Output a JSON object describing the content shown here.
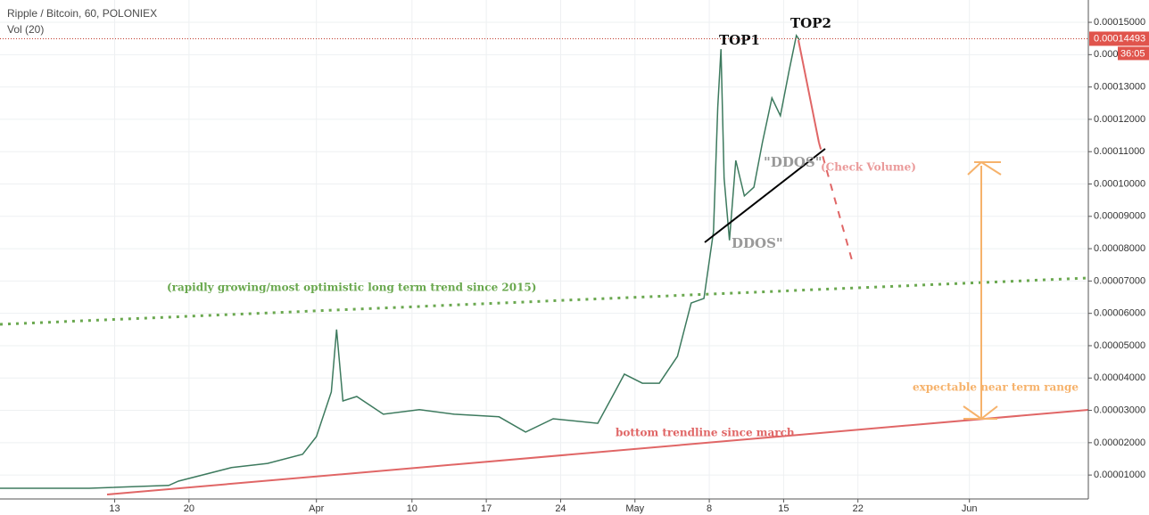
{
  "chart_data": {
    "type": "line",
    "title": "Ripple / Bitcoin, 60, POLONIEX",
    "indicator": "Vol (20)",
    "color": "#3d7a5e",
    "grid": true,
    "x": [
      -10.8,
      -2.4,
      5.1,
      6,
      11,
      14.4,
      17.7,
      19,
      20.4,
      20.9,
      21.5,
      22.8,
      25.3,
      28.7,
      32,
      36.2,
      38.7,
      41.3,
      45.5,
      47.1,
      48,
      49.7,
      51.3,
      53,
      54.3,
      55.5,
      56.4,
      56.8,
      57.1,
      57.4,
      57.9,
      58.5,
      59.3,
      60.2,
      61,
      61.9,
      62.7,
      63.5,
      64.2,
      64.5
    ],
    "values": [
      5.9e-06,
      5.9e-06,
      6.8e-06,
      8.1e-06,
      1.23e-05,
      1.36e-05,
      1.64e-05,
      2.19e-05,
      3.57e-05,
      5.5e-05,
      3.29e-05,
      3.43e-05,
      2.88e-05,
      3.02e-05,
      2.88e-05,
      2.8e-05,
      2.33e-05,
      2.74e-05,
      2.6e-05,
      3.57e-05,
      4.12e-05,
      3.84e-05,
      3.84e-05,
      4.67e-05,
      6.32e-05,
      6.46e-05,
      8.53e-05,
      0.0001238,
      0.0001417,
      0.0001018,
      8.26e-05,
      0.0001073,
      9.63e-05,
      9.9e-05,
      0.0001128,
      0.0001266,
      0.0001211,
      0.0001348,
      0.0001459,
      0.0001445
    ],
    "xlim": [
      -10.8,
      91.7
    ],
    "xticks": [
      {
        "value": 0,
        "label": "13"
      },
      {
        "value": 7,
        "label": "20"
      },
      {
        "value": 19,
        "label": "Apr"
      },
      {
        "value": 28,
        "label": "10"
      },
      {
        "value": 35,
        "label": "17"
      },
      {
        "value": 42,
        "label": "24"
      },
      {
        "value": 49,
        "label": "May"
      },
      {
        "value": 56,
        "label": "8"
      },
      {
        "value": 63,
        "label": "15"
      },
      {
        "value": 70,
        "label": "22"
      },
      {
        "value": 80.5,
        "label": "Jun"
      }
    ],
    "ylim": [
      2.6e-06,
      0.0001569
    ],
    "yticks": [
      {
        "value": 1e-05,
        "label": "0.00001000"
      },
      {
        "value": 2e-05,
        "label": "0.00002000"
      },
      {
        "value": 3e-05,
        "label": "0.00003000"
      },
      {
        "value": 4e-05,
        "label": "0.00004000"
      },
      {
        "value": 5e-05,
        "label": "0.00005000"
      },
      {
        "value": 6e-05,
        "label": "0.00006000"
      },
      {
        "value": 7e-05,
        "label": "0.00007000"
      },
      {
        "value": 8e-05,
        "label": "0.00008000"
      },
      {
        "value": 9e-05,
        "label": "0.00009000"
      },
      {
        "value": 0.0001,
        "label": "0.00010000"
      },
      {
        "value": 0.00011,
        "label": "0.00011000"
      },
      {
        "value": 0.00012,
        "label": "0.00012000"
      },
      {
        "value": 0.00013,
        "label": "0.00013000"
      },
      {
        "value": 0.00014,
        "label": "0.000"
      },
      {
        "value": 0.00015,
        "label": "0.00015000"
      }
    ],
    "last_price": {
      "value": 0.00014493,
      "label": "0.00014493"
    },
    "countdown": "36:05",
    "annotations": [
      "TOP1",
      "TOP2",
      "DDOS\"",
      "\"DDOS\"",
      "(Check Volume)",
      "(rapidly growing/most optimistic long term trend since 2015)",
      "expectable near term range",
      "bottom trendline since march"
    ]
  }
}
